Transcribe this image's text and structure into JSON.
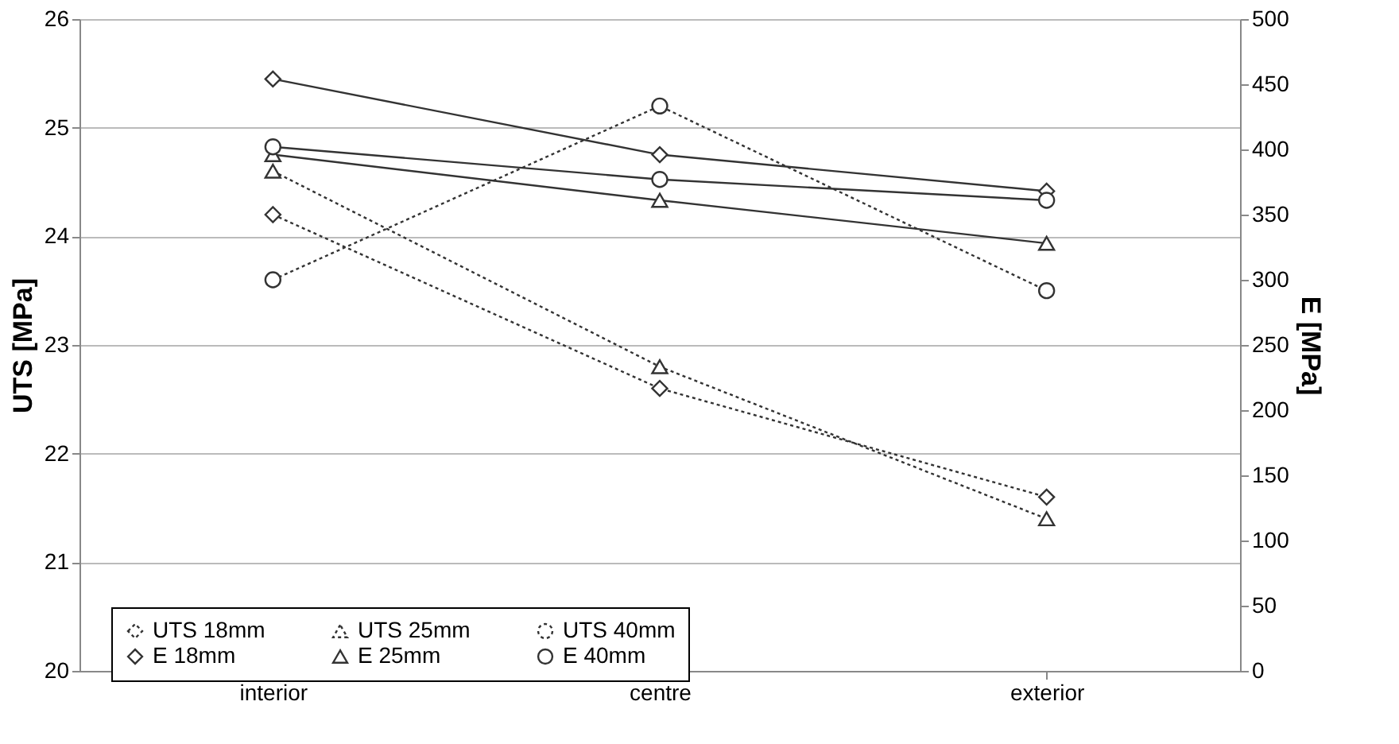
{
  "chart_data": {
    "type": "line",
    "ylabel": "UTS [MPa]",
    "y2label": "E [MPa]",
    "categories": [
      "interior",
      "centre",
      "exterior"
    ],
    "ylim": [
      20,
      26
    ],
    "yticks": [
      20,
      21,
      22,
      23,
      24,
      25,
      26
    ],
    "y2lim": [
      0,
      500
    ],
    "y2ticks": [
      0,
      50,
      100,
      150,
      200,
      250,
      300,
      350,
      400,
      450,
      500
    ],
    "grid": "y",
    "legend": "bottom",
    "series": [
      {
        "name": "UTS 18mm",
        "color": "#333333",
        "marker": "diamond",
        "line_style": "dotted",
        "values": [
          24.2,
          22.6,
          21.6
        ]
      },
      {
        "name": "UTS 25mm",
        "color": "#333333",
        "marker": "triangle",
        "line_style": "dotted",
        "values": [
          24.6,
          22.8,
          21.4
        ]
      },
      {
        "name": "UTS 40mm",
        "color": "#333333",
        "marker": "circle",
        "line_style": "dotted",
        "values": [
          23.6,
          25.2,
          23.5
        ]
      },
      {
        "name": "E 18mm",
        "color": "#333333",
        "marker": "diamond",
        "line_style": "solid",
        "axis": "y2",
        "values": [
          454,
          396,
          368
        ]
      },
      {
        "name": "E 25mm",
        "color": "#333333",
        "marker": "triangle",
        "line_style": "solid",
        "axis": "y2",
        "values": [
          396,
          361,
          328
        ]
      },
      {
        "name": "E 40mm",
        "color": "#333333",
        "marker": "circle",
        "line_style": "solid",
        "axis": "y2",
        "values": [
          402,
          377,
          361
        ]
      }
    ]
  }
}
